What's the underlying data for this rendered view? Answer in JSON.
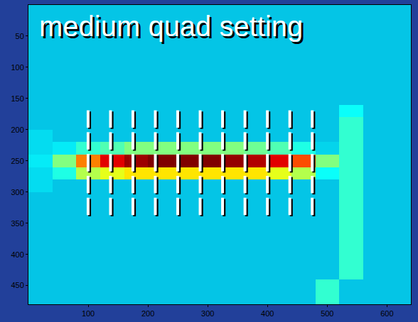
{
  "chart_data": {
    "type": "heatmap",
    "title": "medium quad setting",
    "x": [
      20,
      60,
      100,
      140,
      180,
      220,
      260,
      300,
      340,
      380,
      420,
      460,
      500,
      540,
      580,
      620
    ],
    "y": [
      10,
      30,
      50,
      70,
      90,
      110,
      130,
      150,
      170,
      190,
      210,
      230,
      250,
      270,
      290,
      310,
      330,
      350,
      370,
      390,
      410,
      430,
      450,
      470
    ],
    "z": [
      [
        0.3,
        0.3,
        0.3,
        0.3,
        0.3,
        0.3,
        0.3,
        0.3,
        0.3,
        0.3,
        0.3,
        0.3,
        0.3,
        0.3,
        0.3,
        0.3
      ],
      [
        0.3,
        0.3,
        0.3,
        0.3,
        0.3,
        0.3,
        0.3,
        0.3,
        0.3,
        0.3,
        0.3,
        0.3,
        0.3,
        0.3,
        0.3,
        0.3
      ],
      [
        0.3,
        0.3,
        0.3,
        0.3,
        0.3,
        0.3,
        0.3,
        0.3,
        0.3,
        0.3,
        0.3,
        0.3,
        0.3,
        0.3,
        0.3,
        0.3
      ],
      [
        0.3,
        0.3,
        0.3,
        0.3,
        0.3,
        0.3,
        0.3,
        0.3,
        0.3,
        0.3,
        0.3,
        0.3,
        0.3,
        0.3,
        0.3,
        0.3
      ],
      [
        0.3,
        0.3,
        0.3,
        0.3,
        0.3,
        0.3,
        0.3,
        0.3,
        0.3,
        0.3,
        0.3,
        0.3,
        0.3,
        0.3,
        0.3,
        0.3
      ],
      [
        0.3,
        0.3,
        0.3,
        0.3,
        0.3,
        0.3,
        0.3,
        0.3,
        0.3,
        0.3,
        0.3,
        0.3,
        0.3,
        0.3,
        0.3,
        0.3
      ],
      [
        0.3,
        0.3,
        0.3,
        0.3,
        0.3,
        0.3,
        0.3,
        0.3,
        0.3,
        0.3,
        0.3,
        0.3,
        0.3,
        0.3,
        0.3,
        0.3
      ],
      [
        0.3,
        0.3,
        0.3,
        0.3,
        0.3,
        0.3,
        0.3,
        0.3,
        0.3,
        0.3,
        0.3,
        0.3,
        0.3,
        0.3,
        0.3,
        0.3
      ],
      [
        0.3,
        0.3,
        0.3,
        0.3,
        0.3,
        0.3,
        0.3,
        0.3,
        0.3,
        0.3,
        0.3,
        0.3,
        0.3,
        0.38,
        0.3,
        0.3
      ],
      [
        0.3,
        0.3,
        0.3,
        0.3,
        0.3,
        0.3,
        0.3,
        0.3,
        0.3,
        0.3,
        0.3,
        0.3,
        0.3,
        0.42,
        0.3,
        0.3
      ],
      [
        0.33,
        0.3,
        0.3,
        0.3,
        0.3,
        0.3,
        0.3,
        0.3,
        0.3,
        0.3,
        0.3,
        0.3,
        0.3,
        0.42,
        0.3,
        0.3
      ],
      [
        0.33,
        0.35,
        0.42,
        0.45,
        0.5,
        0.5,
        0.5,
        0.5,
        0.5,
        0.48,
        0.45,
        0.4,
        0.32,
        0.42,
        0.3,
        0.3
      ],
      [
        0.35,
        0.5,
        0.75,
        0.9,
        0.97,
        1,
        1,
        1,
        0.98,
        0.95,
        0.9,
        0.8,
        0.5,
        0.42,
        0.3,
        0.3
      ],
      [
        0.33,
        0.4,
        0.55,
        0.6,
        0.65,
        0.65,
        0.65,
        0.65,
        0.65,
        0.65,
        0.6,
        0.55,
        0.38,
        0.42,
        0.3,
        0.3
      ],
      [
        0.33,
        0.3,
        0.3,
        0.3,
        0.3,
        0.3,
        0.3,
        0.3,
        0.3,
        0.3,
        0.3,
        0.3,
        0.3,
        0.42,
        0.3,
        0.3
      ],
      [
        0.3,
        0.3,
        0.3,
        0.3,
        0.3,
        0.3,
        0.3,
        0.3,
        0.3,
        0.3,
        0.3,
        0.3,
        0.3,
        0.42,
        0.3,
        0.3
      ],
      [
        0.3,
        0.3,
        0.3,
        0.3,
        0.3,
        0.3,
        0.3,
        0.3,
        0.3,
        0.3,
        0.3,
        0.3,
        0.3,
        0.42,
        0.3,
        0.3
      ],
      [
        0.3,
        0.3,
        0.3,
        0.3,
        0.3,
        0.3,
        0.3,
        0.3,
        0.3,
        0.3,
        0.3,
        0.3,
        0.3,
        0.42,
        0.3,
        0.3
      ],
      [
        0.3,
        0.3,
        0.3,
        0.3,
        0.3,
        0.3,
        0.3,
        0.3,
        0.3,
        0.3,
        0.3,
        0.3,
        0.3,
        0.42,
        0.3,
        0.3
      ],
      [
        0.3,
        0.3,
        0.3,
        0.3,
        0.3,
        0.3,
        0.3,
        0.3,
        0.3,
        0.3,
        0.3,
        0.3,
        0.3,
        0.42,
        0.3,
        0.3
      ],
      [
        0.3,
        0.3,
        0.3,
        0.3,
        0.3,
        0.3,
        0.3,
        0.3,
        0.3,
        0.3,
        0.3,
        0.3,
        0.3,
        0.42,
        0.3,
        0.3
      ],
      [
        0.3,
        0.3,
        0.3,
        0.3,
        0.3,
        0.3,
        0.3,
        0.3,
        0.3,
        0.3,
        0.3,
        0.3,
        0.3,
        0.42,
        0.3,
        0.3
      ],
      [
        0.3,
        0.3,
        0.3,
        0.3,
        0.3,
        0.3,
        0.3,
        0.3,
        0.3,
        0.3,
        0.3,
        0.3,
        0.42,
        0.3,
        0.3,
        0.3
      ],
      [
        0.3,
        0.3,
        0.3,
        0.3,
        0.3,
        0.3,
        0.3,
        0.3,
        0.3,
        0.3,
        0.3,
        0.3,
        0.42,
        0.3,
        0.3,
        0.3
      ]
    ],
    "zlim": [
      0,
      1
    ],
    "xlim": [
      0,
      640
    ],
    "xticks": [
      100,
      200,
      300,
      400,
      500,
      600
    ],
    "ylim": [
      480,
      0
    ],
    "yticks": [
      50,
      100,
      150,
      200,
      250,
      300,
      350,
      400,
      450
    ],
    "grid": false
  }
}
